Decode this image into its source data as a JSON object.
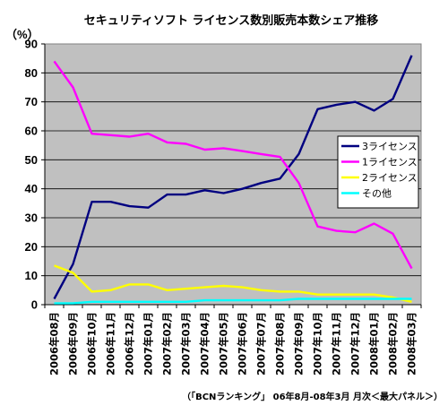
{
  "chart_data": {
    "type": "line",
    "title": "セキュリティソフト ライセンス数別販売本数シェア推移",
    "ylabel": "（%）",
    "source_note": "（「BCNランキング」 06年8月-08年3月 月次＜最大パネル＞）",
    "ylim": [
      0,
      90
    ],
    "yticks": [
      0,
      10,
      20,
      30,
      40,
      50,
      60,
      70,
      80,
      90
    ],
    "grid": true,
    "legend_position": "right",
    "plot_background": "#c0c0c0",
    "categories": [
      "2006年08月",
      "2006年09月",
      "2006年10月",
      "2006年11月",
      "2006年12月",
      "2007年01月",
      "2007年02月",
      "2007年03月",
      "2007年04月",
      "2007年05月",
      "2007年06月",
      "2007年07月",
      "2007年08月",
      "2007年09月",
      "2007年10月",
      "2007年11月",
      "2007年12月",
      "2008年01月",
      "2008年02月",
      "2008年03月"
    ],
    "series": [
      {
        "name": "3ライセンス",
        "color": "#000080",
        "values": [
          2,
          14,
          35.5,
          35.5,
          34,
          33.5,
          38,
          38,
          39.5,
          38.5,
          40,
          42,
          43.5,
          52,
          67.5,
          69,
          70,
          67,
          71,
          86
        ]
      },
      {
        "name": "1ライセンス",
        "color": "#ff00ff",
        "values": [
          84,
          75,
          59,
          58.5,
          58,
          59,
          56,
          55.5,
          53.5,
          54,
          53,
          52,
          51,
          42,
          27,
          25.5,
          25,
          28,
          24.5,
          12.5
        ]
      },
      {
        "name": "2ライセンス",
        "color": "#ffff00",
        "values": [
          13.5,
          11,
          4.5,
          5,
          7,
          7,
          5,
          5.5,
          6,
          6.5,
          6,
          5,
          4.5,
          4.5,
          3.5,
          3.5,
          3.5,
          3.5,
          2.5,
          1
        ]
      },
      {
        "name": "その他",
        "color": "#00ffff",
        "values": [
          0.5,
          0.5,
          1,
          1,
          1,
          1,
          1,
          1,
          1.5,
          1.5,
          1.5,
          1.5,
          1.5,
          2,
          2,
          2,
          2,
          2,
          2,
          2
        ]
      }
    ]
  }
}
